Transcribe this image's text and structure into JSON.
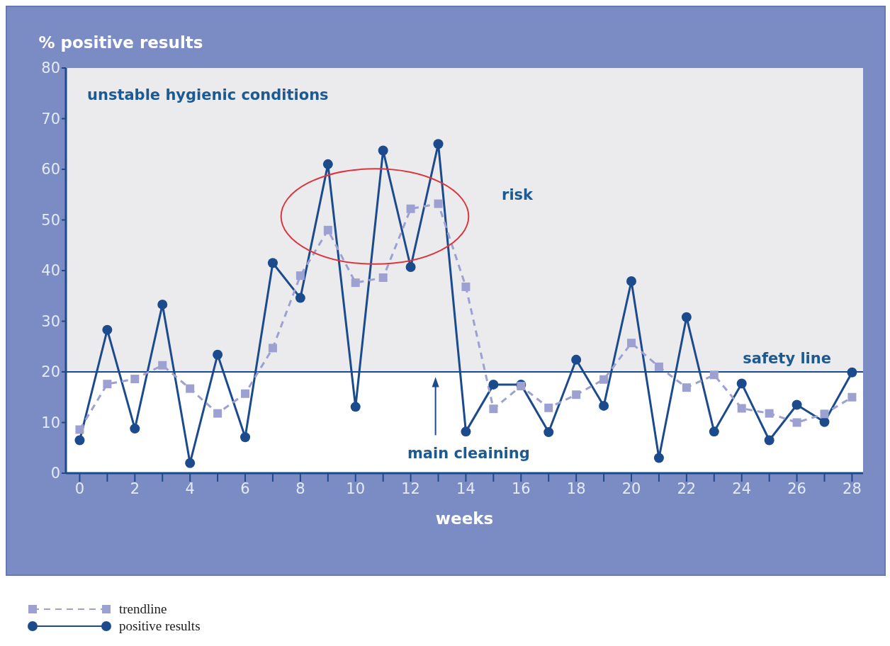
{
  "chart_data": {
    "type": "line",
    "ylabel": "% positive results",
    "xlabel": "weeks",
    "x": [
      0,
      1,
      2,
      3,
      4,
      5,
      6,
      7,
      8,
      9,
      10,
      11,
      12,
      13,
      14,
      15,
      16,
      17,
      18,
      19,
      20,
      21,
      22,
      23,
      24,
      25,
      26,
      27,
      28
    ],
    "series": [
      {
        "name": "trendline",
        "color": "#9da1d2",
        "marker": "square",
        "line_style": "dashed",
        "values": [
          8.6,
          17.6,
          18.6,
          21.3,
          16.7,
          11.8,
          15.7,
          24.7,
          39,
          48,
          37.6,
          38.6,
          52.2,
          53.2,
          36.8,
          12.7,
          17.2,
          12.9,
          15.5,
          18.5,
          25.7,
          21,
          16.9,
          19.4,
          12.8,
          11.8,
          10,
          11.7,
          15
        ]
      },
      {
        "name": "positive results",
        "color": "#1b4b8c",
        "marker": "circle",
        "line_style": "solid",
        "values": [
          6.5,
          28.3,
          8.8,
          33.3,
          2,
          23.4,
          7.1,
          41.5,
          34.6,
          61,
          13.1,
          63.7,
          40.7,
          65,
          8.2,
          17.5,
          17.5,
          8.1,
          22.4,
          13.3,
          37.9,
          3,
          30.8,
          8.2,
          17.7,
          6.5,
          13.5,
          10.1,
          19.9
        ]
      }
    ],
    "xlim": [
      -0.5,
      28.4
    ],
    "xticks": [
      0,
      {
        "value": 1,
        "label": null
      },
      2,
      {
        "value": 3,
        "label": null
      },
      4,
      {
        "value": 5,
        "label": null
      },
      6,
      {
        "value": 7,
        "label": null
      },
      8,
      {
        "value": 9,
        "label": null
      },
      10,
      {
        "value": 11,
        "label": null
      },
      12,
      {
        "value": 13,
        "label": null
      },
      14,
      {
        "value": 15,
        "label": null
      },
      16,
      {
        "value": 17,
        "label": null
      },
      18,
      {
        "value": 19,
        "label": null
      },
      20,
      {
        "value": 21,
        "label": null
      },
      22,
      {
        "value": 23,
        "label": null
      },
      24,
      {
        "value": 25,
        "label": null
      },
      26,
      {
        "value": 27,
        "label": null
      },
      28
    ],
    "ylim": [
      0,
      80
    ],
    "yticks": [
      0,
      10,
      20,
      30,
      40,
      50,
      60,
      70,
      80
    ],
    "ref_lines": [
      {
        "axis": "y",
        "value": 20,
        "label": "safety line",
        "color": "#1b4b8c"
      }
    ],
    "bands": [
      {
        "axis": "y",
        "from": 20,
        "to": 80,
        "label": "unstable hygienic conditions",
        "color": "#ebebee"
      }
    ],
    "annotations": [
      "risk",
      "main cleaining"
    ],
    "grid": false,
    "legend": "bottom"
  }
}
